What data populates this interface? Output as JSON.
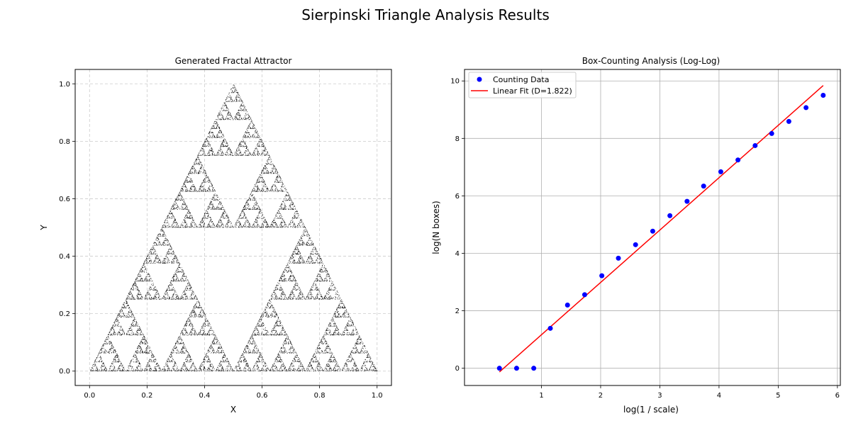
{
  "figure": {
    "title": "Sierpinski Triangle Analysis Results"
  },
  "chart_data": [
    {
      "type": "scatter",
      "title": "Generated Fractal Attractor",
      "xlabel": "X",
      "ylabel": "Y",
      "xlim": [
        -0.05,
        1.05
      ],
      "ylim": [
        -0.05,
        1.05
      ],
      "x_ticks": [
        "0.0",
        "0.2",
        "0.4",
        "0.6",
        "0.8",
        "1.0"
      ],
      "y_ticks": [
        "0.0",
        "0.2",
        "0.4",
        "0.6",
        "0.8",
        "1.0"
      ],
      "grid": "dashed",
      "vertices": [
        [
          0,
          0
        ],
        [
          1,
          0
        ],
        [
          0.5,
          1
        ]
      ],
      "point_color": "#000000"
    },
    {
      "type": "scatter",
      "title": "Box-Counting Analysis (Log-Log)",
      "xlabel": "log(1 / scale)",
      "ylabel": "log(N boxes)",
      "xlim": [
        -0.3,
        6.05
      ],
      "ylim": [
        -0.6,
        10.4
      ],
      "x_ticks": [
        "1",
        "2",
        "3",
        "4",
        "5",
        "6"
      ],
      "y_ticks": [
        "0",
        "2",
        "4",
        "6",
        "8",
        "10"
      ],
      "grid": "solid",
      "legend_position": "top-left",
      "series": [
        {
          "name": "Counting Data",
          "kind": "points",
          "color": "#0000ff",
          "x": [
            0.29,
            0.58,
            0.87,
            1.15,
            1.44,
            1.73,
            2.02,
            2.3,
            2.59,
            2.88,
            3.17,
            3.46,
            3.74,
            4.03,
            4.32,
            4.61,
            4.89,
            5.18,
            5.47,
            5.76
          ],
          "y": [
            0.0,
            0.0,
            0.0,
            1.39,
            2.2,
            2.56,
            3.22,
            3.83,
            4.3,
            4.77,
            5.31,
            5.81,
            6.34,
            6.84,
            7.25,
            7.75,
            8.17,
            8.59,
            9.07,
            9.5
          ]
        },
        {
          "name": "Linear Fit (D=1.822)",
          "kind": "line",
          "color": "#ff0000",
          "x": [
            0.29,
            5.76
          ],
          "y": [
            -0.13,
            9.84
          ]
        }
      ]
    }
  ]
}
